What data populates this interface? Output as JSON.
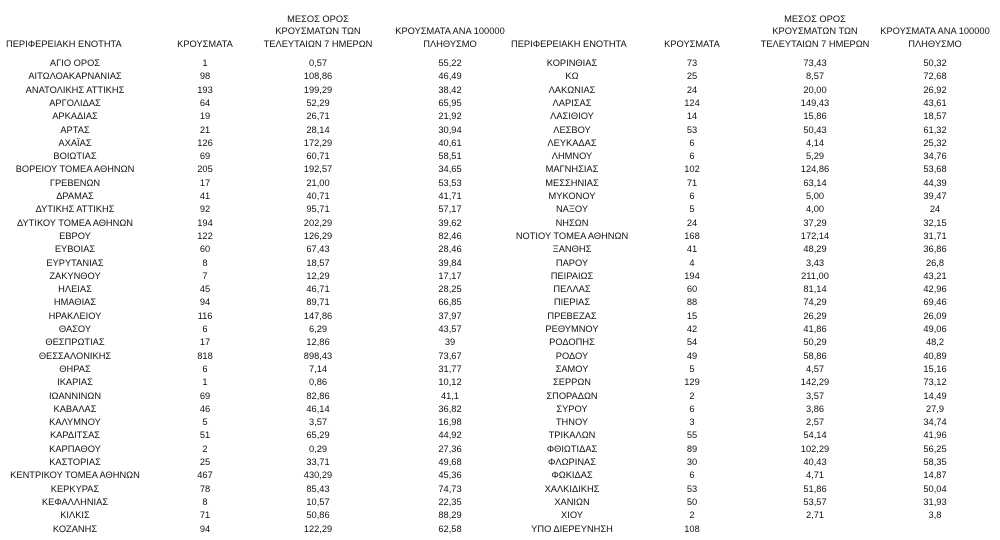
{
  "tables": [
    {
      "headers": [
        [
          "ΠΕΡΙΦΕΡΕΙΑΚΗ ΕΝΟΤΗΤΑ"
        ],
        [
          "ΚΡΟΥΣΜΑΤΑ"
        ],
        [
          "ΜΕΣΟΣ ΟΡΟΣ",
          "ΚΡΟΥΣΜΑΤΩΝ ΤΩΝ",
          "ΤΕΛΕΥΤΑΙΩΝ 7 ΗΜΕΡΩΝ"
        ],
        [
          "ΚΡΟΥΣΜΑΤΑ ΑΝΑ 100000",
          "ΠΛΗΘΥΣΜΟ"
        ]
      ],
      "rows": [
        [
          "ΑΓΙΟ ΟΡΟΣ",
          "1",
          "0,57",
          "55,22"
        ],
        [
          "ΑΙΤΩΛΟΑΚΑΡΝΑΝΙΑΣ",
          "98",
          "108,86",
          "46,49"
        ],
        [
          "ΑΝΑΤΟΛΙΚΗΣ ΑΤΤΙΚΗΣ",
          "193",
          "199,29",
          "38,42"
        ],
        [
          "ΑΡΓΟΛΙΔΑΣ",
          "64",
          "52,29",
          "65,95"
        ],
        [
          "ΑΡΚΑΔΙΑΣ",
          "19",
          "26,71",
          "21,92"
        ],
        [
          "ΑΡΤΑΣ",
          "21",
          "28,14",
          "30,94"
        ],
        [
          "ΑΧΑΪΑΣ",
          "126",
          "172,29",
          "40,61"
        ],
        [
          "ΒΟΙΩΤΙΑΣ",
          "69",
          "60,71",
          "58,51"
        ],
        [
          "ΒΟΡΕΙΟΥ ΤΟΜΕΑ ΑΘΗΝΩΝ",
          "205",
          "192,57",
          "34,65"
        ],
        [
          "ΓΡΕΒΕΝΩΝ",
          "17",
          "21,00",
          "53,53"
        ],
        [
          "ΔΡΑΜΑΣ",
          "41",
          "40,71",
          "41,71"
        ],
        [
          "ΔΥΤΙΚΗΣ ΑΤΤΙΚΗΣ",
          "92",
          "95,71",
          "57,17"
        ],
        [
          "ΔΥΤΙΚΟΥ ΤΟΜΕΑ ΑΘΗΝΩΝ",
          "194",
          "202,29",
          "39,62"
        ],
        [
          "ΕΒΡΟΥ",
          "122",
          "126,29",
          "82,46"
        ],
        [
          "ΕΥΒΟΙΑΣ",
          "60",
          "67,43",
          "28,46"
        ],
        [
          "ΕΥΡΥΤΑΝΙΑΣ",
          "8",
          "18,57",
          "39,84"
        ],
        [
          "ΖΑΚΥΝΘΟΥ",
          "7",
          "12,29",
          "17,17"
        ],
        [
          "ΗΛΕΙΑΣ",
          "45",
          "46,71",
          "28,25"
        ],
        [
          "ΗΜΑΘΙΑΣ",
          "94",
          "89,71",
          "66,85"
        ],
        [
          "ΗΡΑΚΛΕΙΟΥ",
          "116",
          "147,86",
          "37,97"
        ],
        [
          "ΘΑΣΟΥ",
          "6",
          "6,29",
          "43,57"
        ],
        [
          "ΘΕΣΠΡΩΤΙΑΣ",
          "17",
          "12,86",
          "39"
        ],
        [
          "ΘΕΣΣΑΛΟΝΙΚΗΣ",
          "818",
          "898,43",
          "73,67"
        ],
        [
          "ΘΗΡΑΣ",
          "6",
          "7,14",
          "31,77"
        ],
        [
          "ΙΚΑΡΙΑΣ",
          "1",
          "0,86",
          "10,12"
        ],
        [
          "ΙΩΑΝΝΙΝΩΝ",
          "69",
          "82,86",
          "41,1"
        ],
        [
          "ΚΑΒΑΛΑΣ",
          "46",
          "46,14",
          "36,82"
        ],
        [
          "ΚΑΛΥΜΝΟΥ",
          "5",
          "3,57",
          "16,98"
        ],
        [
          "ΚΑΡΔΙΤΣΑΣ",
          "51",
          "65,29",
          "44,92"
        ],
        [
          "ΚΑΡΠΑΘΟΥ",
          "2",
          "0,29",
          "27,36"
        ],
        [
          "ΚΑΣΤΟΡΙΑΣ",
          "25",
          "33,71",
          "49,68"
        ],
        [
          "ΚΕΝΤΡΙΚΟΥ ΤΟΜΕΑ ΑΘΗΝΩΝ",
          "467",
          "430,29",
          "45,36"
        ],
        [
          "ΚΕΡΚΥΡΑΣ",
          "78",
          "85,43",
          "74,73"
        ],
        [
          "ΚΕΦΑΛΛΗΝΙΑΣ",
          "8",
          "10,57",
          "22,35"
        ],
        [
          "ΚΙΛΚΙΣ",
          "71",
          "50,86",
          "88,29"
        ],
        [
          "ΚΟΖΑΝΗΣ",
          "94",
          "122,29",
          "62,58"
        ]
      ]
    },
    {
      "headers": [
        [
          "ΠΕΡΙΦΕΡΕΙΑΚΗ ΕΝΟΤΗΤΑ"
        ],
        [
          "ΚΡΟΥΣΜΑΤΑ"
        ],
        [
          "ΜΕΣΟΣ ΟΡΟΣ",
          "ΚΡΟΥΣΜΑΤΩΝ ΤΩΝ",
          "ΤΕΛΕΥΤΑΙΩΝ 7 ΗΜΕΡΩΝ"
        ],
        [
          "ΚΡΟΥΣΜΑΤΑ ΑΝΑ 100000",
          "ΠΛΗΘΥΣΜΟ"
        ]
      ],
      "rows": [
        [
          "ΚΟΡΙΝΘΙΑΣ",
          "73",
          "73,43",
          "50,32"
        ],
        [
          "ΚΩ",
          "25",
          "8,57",
          "72,68"
        ],
        [
          "ΛΑΚΩΝΙΑΣ",
          "24",
          "20,00",
          "26,92"
        ],
        [
          "ΛΑΡΙΣΑΣ",
          "124",
          "149,43",
          "43,61"
        ],
        [
          "ΛΑΣΙΘΙΟΥ",
          "14",
          "15,86",
          "18,57"
        ],
        [
          "ΛΕΣΒΟΥ",
          "53",
          "50,43",
          "61,32"
        ],
        [
          "ΛΕΥΚΑΔΑΣ",
          "6",
          "4,14",
          "25,32"
        ],
        [
          "ΛΗΜΝΟΥ",
          "6",
          "5,29",
          "34,76"
        ],
        [
          "ΜΑΓΝΗΣΙΑΣ",
          "102",
          "124,86",
          "53,68"
        ],
        [
          "ΜΕΣΣΗΝΙΑΣ",
          "71",
          "63,14",
          "44,39"
        ],
        [
          "ΜΥΚΟΝΟΥ",
          "6",
          "5,00",
          "39,47"
        ],
        [
          "ΝΑΞΟΥ",
          "5",
          "4,00",
          "24"
        ],
        [
          "ΝΗΣΩΝ",
          "24",
          "37,29",
          "32,15"
        ],
        [
          "ΝΟΤΙΟΥ ΤΟΜΕΑ ΑΘΗΝΩΝ",
          "168",
          "172,14",
          "31,71"
        ],
        [
          "ΞΑΝΘΗΣ",
          "41",
          "48,29",
          "36,86"
        ],
        [
          "ΠΑΡΟΥ",
          "4",
          "3,43",
          "26,8"
        ],
        [
          "ΠΕΙΡΑΙΩΣ",
          "194",
          "211,00",
          "43,21"
        ],
        [
          "ΠΕΛΛΑΣ",
          "60",
          "81,14",
          "42,96"
        ],
        [
          "ΠΙΕΡΙΑΣ",
          "88",
          "74,29",
          "69,46"
        ],
        [
          "ΠΡΕΒΕΖΑΣ",
          "15",
          "26,29",
          "26,09"
        ],
        [
          "ΡΕΘΥΜΝΟΥ",
          "42",
          "41,86",
          "49,06"
        ],
        [
          "ΡΟΔΟΠΗΣ",
          "54",
          "50,29",
          "48,2"
        ],
        [
          "ΡΟΔΟΥ",
          "49",
          "58,86",
          "40,89"
        ],
        [
          "ΣΑΜΟΥ",
          "5",
          "4,57",
          "15,16"
        ],
        [
          "ΣΕΡΡΩΝ",
          "129",
          "142,29",
          "73,12"
        ],
        [
          "ΣΠΟΡΑΔΩΝ",
          "2",
          "3,57",
          "14,49"
        ],
        [
          "ΣΥΡΟΥ",
          "6",
          "3,86",
          "27,9"
        ],
        [
          "ΤΗΝΟΥ",
          "3",
          "2,57",
          "34,74"
        ],
        [
          "ΤΡΙΚΑΛΩΝ",
          "55",
          "54,14",
          "41,96"
        ],
        [
          "ΦΘΙΩΤΙΔΑΣ",
          "89",
          "102,29",
          "56,25"
        ],
        [
          "ΦΛΩΡΙΝΑΣ",
          "30",
          "40,43",
          "58,35"
        ],
        [
          "ΦΩΚΙΔΑΣ",
          "6",
          "4,71",
          "14,87"
        ],
        [
          "ΧΑΛΚΙΔΙΚΗΣ",
          "53",
          "51,86",
          "50,04"
        ],
        [
          "ΧΑΝΙΩΝ",
          "50",
          "53,57",
          "31,93"
        ],
        [
          "ΧΙΟΥ",
          "2",
          "2,71",
          "3,8"
        ],
        [
          "ΥΠΟ ΔΙΕΡΕΥΝΗΣΗ",
          "108"
        ]
      ]
    }
  ]
}
